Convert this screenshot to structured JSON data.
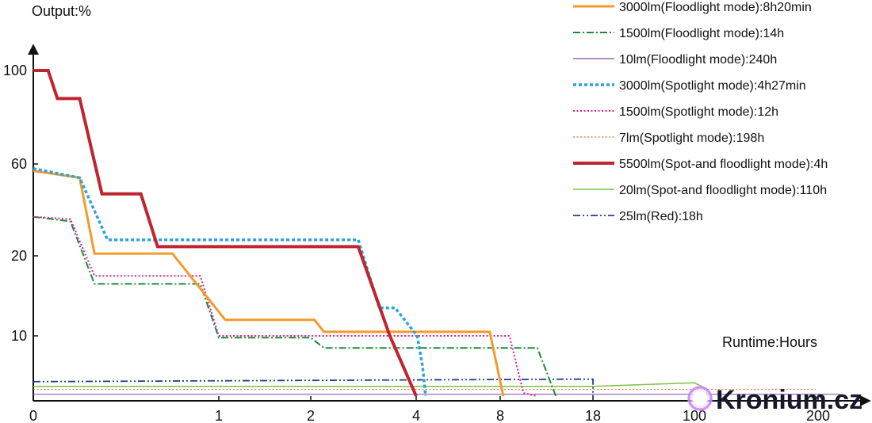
{
  "chart_data": {
    "type": "line",
    "title": "",
    "ylabel": "Output:%",
    "xlabel": "Runtime:Hours",
    "x_ticks": [
      "0",
      "1",
      "2",
      "4",
      "8",
      "18",
      "100",
      "200"
    ],
    "y_ticks": [
      "10",
      "20",
      "60",
      "100"
    ],
    "legend_position": "top-right",
    "grid": false,
    "series": [
      {
        "name": "3000lm(Floodlight mode):8h20min",
        "color": "#f39a2b",
        "style": "solid",
        "width": 3,
        "points": [
          [
            0,
            57
          ],
          [
            0.25,
            54
          ],
          [
            0.33,
            21
          ],
          [
            0.75,
            21
          ],
          [
            1.07,
            12
          ],
          [
            2.07,
            12
          ],
          [
            2.25,
            10.5
          ],
          [
            7.5,
            10.5
          ],
          [
            8.33,
            0
          ]
        ]
      },
      {
        "name": "1500lm(Floodlight mode):14h",
        "color": "#1a8a3a",
        "style": "dashdot",
        "width": 2,
        "points": [
          [
            0,
            37
          ],
          [
            0.2,
            35
          ],
          [
            0.33,
            16.5
          ],
          [
            0.9,
            16.5
          ],
          [
            1.0,
            9.7
          ],
          [
            2.0,
            9.7
          ],
          [
            2.25,
            8
          ],
          [
            12,
            8
          ],
          [
            14,
            0
          ]
        ]
      },
      {
        "name": "10lm(Floodlight mode):240h",
        "color": "#7b4fa3",
        "style": "solid",
        "width": 1,
        "points": [
          [
            0,
            0.3
          ],
          [
            100,
            0.3
          ],
          [
            240,
            0.3
          ]
        ]
      },
      {
        "name": "3000lm(Spotlight mode):4h27min",
        "color": "#2aa3db",
        "style": "dotted",
        "width": 3.5,
        "points": [
          [
            0,
            58
          ],
          [
            0.25,
            54
          ],
          [
            0.4,
            27
          ],
          [
            2.9,
            27
          ],
          [
            3.3,
            13.5
          ],
          [
            3.6,
            13.5
          ],
          [
            4.05,
            10
          ],
          [
            4.3,
            5
          ],
          [
            4.45,
            0
          ]
        ]
      },
      {
        "name": "1500lm(Spotlight mode):12h",
        "color": "#e0208e",
        "style": "dotted",
        "width": 2,
        "points": [
          [
            0,
            37
          ],
          [
            0.2,
            36
          ],
          [
            0.33,
            17.5
          ],
          [
            0.9,
            17.5
          ],
          [
            1.0,
            10
          ],
          [
            9,
            10
          ],
          [
            10.5,
            0.5
          ],
          [
            12,
            0
          ]
        ]
      },
      {
        "name": "7lm(Spotlight mode):198h",
        "color": "#e36a2e",
        "style": "dotted",
        "width": 1,
        "points": [
          [
            0,
            1.1
          ],
          [
            100,
            1.1
          ],
          [
            198,
            1.1
          ]
        ]
      },
      {
        "name": "5500lm(Spot-and floodlight mode):4h",
        "color": "#c0242e",
        "style": "solid",
        "width": 4,
        "points": [
          [
            0,
            100
          ],
          [
            0.08,
            100
          ],
          [
            0.13,
            88
          ],
          [
            0.25,
            88
          ],
          [
            0.37,
            47
          ],
          [
            0.58,
            47
          ],
          [
            0.67,
            24
          ],
          [
            2.9,
            24
          ],
          [
            3.5,
            10
          ],
          [
            4,
            0
          ]
        ]
      },
      {
        "name": "20lm(Spot-and floodlight mode):110h",
        "color": "#7dc242",
        "style": "solid",
        "width": 1.5,
        "points": [
          [
            0,
            1.6
          ],
          [
            18,
            1.6
          ],
          [
            100,
            2.2
          ],
          [
            110,
            1.2
          ],
          [
            110,
            0
          ]
        ]
      },
      {
        "name": "25lm(Red):18h",
        "color": "#1f3f8f",
        "style": "dashdotdot",
        "width": 1.8,
        "points": [
          [
            0,
            2.4
          ],
          [
            15,
            2.8
          ],
          [
            18,
            2.8
          ],
          [
            18,
            0
          ]
        ]
      }
    ]
  },
  "brand": {
    "name": "Kronium.cz"
  }
}
